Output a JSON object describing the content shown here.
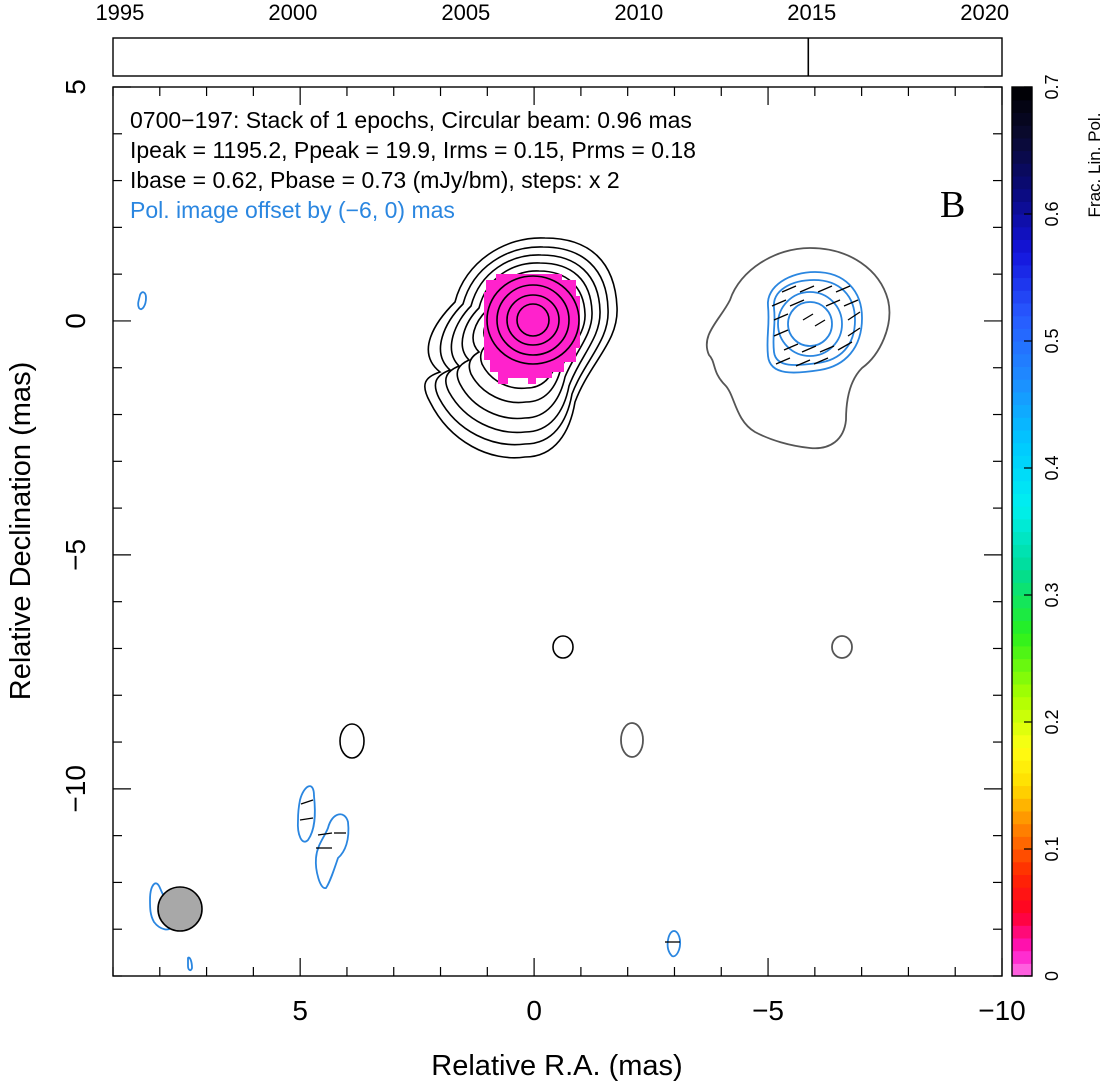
{
  "chart_data": {
    "type": "contour",
    "xlabel": "Relative R.A. (mas)",
    "ylabel": "Relative Declination (mas)",
    "xlim": [
      9,
      -10
    ],
    "ylim": [
      -14,
      5
    ],
    "x_ticks": [
      "5",
      "0",
      "−5",
      "−10"
    ],
    "y_ticks": [
      "5",
      "0",
      "−5",
      "−10"
    ],
    "timeline": {
      "ticks": [
        "1995",
        "2000",
        "2005",
        "2010",
        "2015",
        "2020"
      ],
      "range": [
        1994.8,
        2020.5
      ],
      "epochs": [
        2014.9
      ]
    },
    "annotations": {
      "line1": "0700−197: Stack of 1 epochs, Circular beam: 0.96 mas",
      "line2": "Ipeak = 1195.2, Ppeak = 19.9, Irms = 0.15, Prms = 0.18",
      "line3": "Ibase = 0.62, Pbase = 0.73 (mJy/bm), steps: x 2",
      "line4": "Pol. image offset by (−6, 0) mas",
      "panel_letter": "B"
    },
    "colorbar": {
      "label": "Frac. Lin. Pol.",
      "range": [
        0,
        0.7
      ],
      "ticks": [
        "0",
        "0.1",
        "0.2",
        "0.3",
        "0.4",
        "0.5",
        "0.6",
        "0.7"
      ]
    },
    "beam": {
      "x": 7.8,
      "y": -12.5,
      "diameter_mas": 0.96
    },
    "colors": {
      "stokes_i": "#000000",
      "pol_intensity": "#2a86e0",
      "pol_total_intensity_outline": "#555555",
      "fractional_pol_fill": "#ff22cc",
      "beam_fill": "#a8a8a8"
    }
  }
}
